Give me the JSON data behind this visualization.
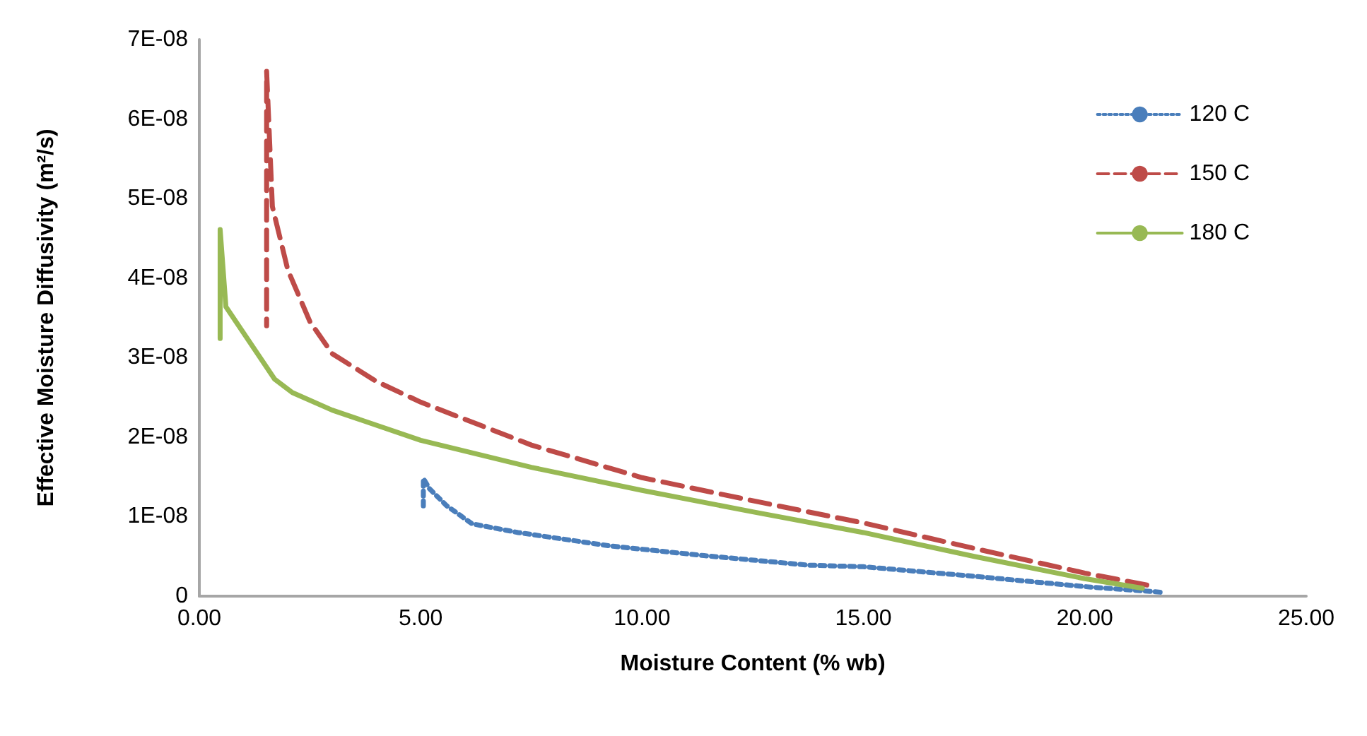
{
  "chart_data": {
    "type": "line",
    "xlabel": "Moisture Content (% wb)",
    "ylabel": "Effective Moisture Diffusivity (m²/s)",
    "xlim": [
      0,
      25
    ],
    "xticks": [
      {
        "value": 0,
        "label": "0.00"
      },
      {
        "value": 5,
        "label": "5.00"
      },
      {
        "value": 10,
        "label": "10.00"
      },
      {
        "value": 15,
        "label": "15.00"
      },
      {
        "value": 20,
        "label": "20.00"
      },
      {
        "value": 25,
        "label": "25.00"
      }
    ],
    "ylim": [
      0,
      7e-08
    ],
    "yticks": [
      0,
      {
        "value": 1e-08,
        "label": "1E-08"
      },
      {
        "value": 2e-08,
        "label": "2E-08"
      },
      {
        "value": 3e-08,
        "label": "3E-08"
      },
      {
        "value": 4e-08,
        "label": "4E-08"
      },
      {
        "value": 5e-08,
        "label": "5E-08"
      },
      {
        "value": 6e-08,
        "label": "6E-08"
      },
      {
        "value": 7e-08,
        "label": "7E-08"
      }
    ],
    "grid": false,
    "legend": "top right",
    "marker": "none",
    "series": [
      {
        "name": "120 C",
        "color": "#4a7ebb",
        "line_style": "dotted",
        "x": [
          21.7,
          20,
          17.5,
          15,
          13.75,
          11.4,
          9.3,
          7.2,
          6.16,
          5.58,
          5.2,
          5.06,
          5.06
        ],
        "values": [
          5e-10,
          1.2e-09,
          2.5e-09,
          3.7e-09,
          3.9e-09,
          5.1e-09,
          6.3e-09,
          8e-09,
          9.1e-09,
          1.14e-08,
          1.35e-08,
          1.48e-08,
          1.09e-08
        ]
      },
      {
        "name": "150 C",
        "color": "#be4b48",
        "line_style": "dashed",
        "x": [
          21.4,
          20,
          17.5,
          15,
          12.5,
          10,
          7.5,
          5,
          4,
          3,
          2.5,
          2,
          1.65,
          1.52,
          1.52
        ],
        "values": [
          1.4e-09,
          2.9e-09,
          6e-09,
          9.2e-09,
          1.2e-08,
          1.49e-08,
          1.9e-08,
          2.44e-08,
          2.7e-08,
          3.05e-08,
          3.45e-08,
          4.1e-08,
          4.9e-08,
          6.6e-08,
          3.4e-08
        ]
      },
      {
        "name": "180 C",
        "color": "#98b954",
        "line_style": "solid",
        "x": [
          21.3,
          20,
          17.5,
          15,
          12.5,
          10,
          7.5,
          5,
          3,
          2.1,
          1.7,
          0.6,
          0.47,
          0.47
        ],
        "values": [
          1e-09,
          2.2e-09,
          5e-09,
          8e-09,
          1.06e-08,
          1.33e-08,
          1.62e-08,
          1.96e-08,
          2.34e-08,
          2.56e-08,
          2.73e-08,
          3.64e-08,
          4.61e-08,
          3.24e-08
        ]
      }
    ]
  }
}
